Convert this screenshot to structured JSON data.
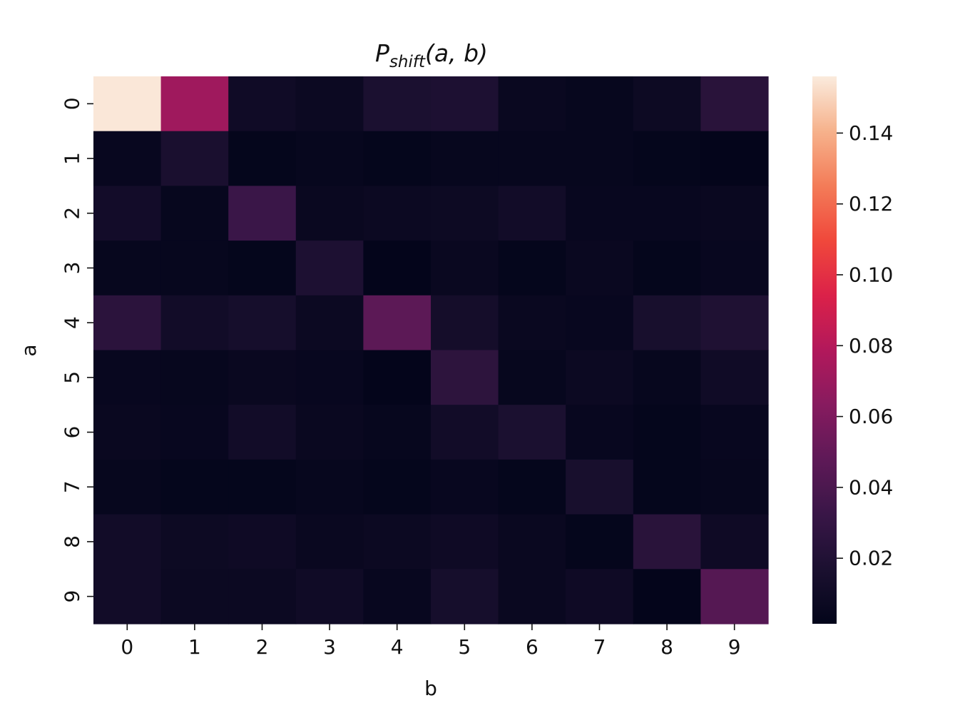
{
  "chart_data": {
    "type": "heatmap",
    "title": {
      "main": "P",
      "subscript": "shift",
      "args": "(a, b)"
    },
    "xlabel": "b",
    "ylabel": "a",
    "x_categories": [
      "0",
      "1",
      "2",
      "3",
      "4",
      "5",
      "6",
      "7",
      "8",
      "9"
    ],
    "y_categories": [
      "0",
      "1",
      "2",
      "3",
      "4",
      "5",
      "6",
      "7",
      "8",
      "9"
    ],
    "values": [
      [
        0.155,
        0.072,
        0.01,
        0.007,
        0.017,
        0.018,
        0.006,
        0.004,
        0.008,
        0.024
      ],
      [
        0.005,
        0.016,
        0.003,
        0.004,
        0.003,
        0.004,
        0.004,
        0.004,
        0.003,
        0.002
      ],
      [
        0.012,
        0.004,
        0.033,
        0.006,
        0.007,
        0.008,
        0.011,
        0.005,
        0.005,
        0.006
      ],
      [
        0.004,
        0.004,
        0.003,
        0.018,
        0.002,
        0.006,
        0.003,
        0.006,
        0.003,
        0.005
      ],
      [
        0.025,
        0.011,
        0.014,
        0.007,
        0.047,
        0.013,
        0.006,
        0.005,
        0.015,
        0.019
      ],
      [
        0.005,
        0.004,
        0.006,
        0.005,
        0.002,
        0.026,
        0.004,
        0.007,
        0.004,
        0.01
      ],
      [
        0.006,
        0.005,
        0.011,
        0.006,
        0.004,
        0.011,
        0.017,
        0.005,
        0.003,
        0.005
      ],
      [
        0.004,
        0.003,
        0.003,
        0.004,
        0.003,
        0.005,
        0.003,
        0.015,
        0.003,
        0.004
      ],
      [
        0.011,
        0.008,
        0.009,
        0.006,
        0.007,
        0.009,
        0.006,
        0.003,
        0.024,
        0.009
      ],
      [
        0.011,
        0.007,
        0.007,
        0.01,
        0.005,
        0.014,
        0.006,
        0.009,
        0.002,
        0.044
      ]
    ],
    "colorbar": {
      "range": [
        0.0015,
        0.156
      ],
      "ticks": [
        0.02,
        0.04,
        0.06,
        0.08,
        0.1,
        0.12,
        0.14
      ],
      "tick_labels": [
        "0.02",
        "0.04",
        "0.06",
        "0.08",
        "0.10",
        "0.12",
        "0.14"
      ],
      "colormap": "rocket"
    },
    "grid": false,
    "legend": "colorbar-right"
  }
}
